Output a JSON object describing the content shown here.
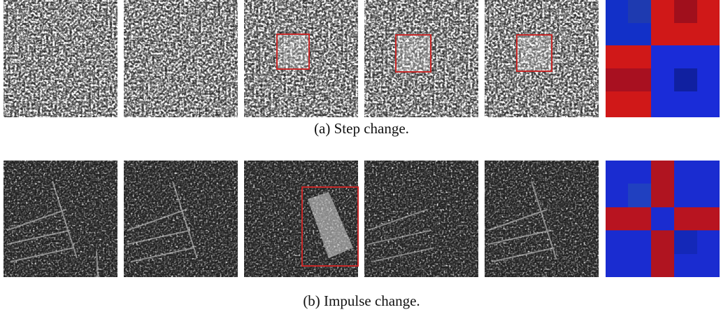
{
  "figure": {
    "rows": [
      {
        "caption": "(a) Step change."
      },
      {
        "caption": "(b) Impulse change."
      }
    ]
  }
}
